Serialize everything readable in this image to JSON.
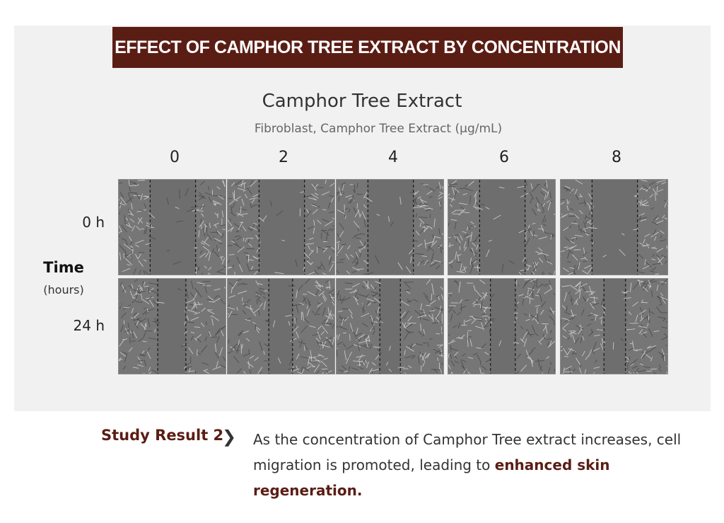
{
  "banner": {
    "title": "EFFECT OF CAMPHOR TREE EXTRACT BY CONCENTRATION"
  },
  "chart": {
    "title": "Camphor Tree Extract",
    "subtitle": "Fibroblast, Camphor Tree Extract (µg/mL)",
    "concentrations": [
      "0",
      "2",
      "4",
      "6",
      "8"
    ],
    "axis_title": "Time",
    "axis_unit": "(hours)",
    "time_points": [
      "0 h",
      "24 h"
    ]
  },
  "study": {
    "label": "Study Result 2",
    "chevron": "❯",
    "text_plain_1": "As the concentration of Camphor Tree extract increases, cell migration is promoted, leading to ",
    "text_emphasis": "enhanced skin regeneration."
  },
  "colors": {
    "banner_bg": "#5a1d14",
    "accent": "#5a1d14",
    "panel_bg": "#f1f1f1"
  }
}
